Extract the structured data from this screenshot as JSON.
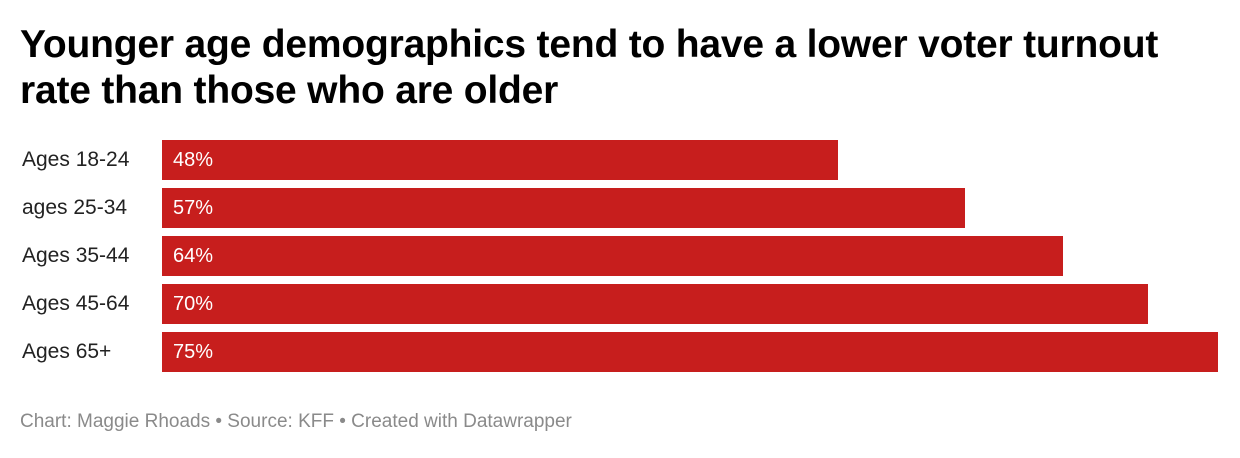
{
  "header": {
    "title": "Younger age demographics tend to have a lower voter turnout rate than those who are older"
  },
  "chart_data": {
    "type": "bar",
    "orientation": "horizontal",
    "title": "Younger age demographics tend to have a lower voter turnout rate than those who are older",
    "categories": [
      "Ages 18-24",
      "ages 25-34",
      "Ages 35-44",
      "Ages 45-64",
      "Ages 65+"
    ],
    "values": [
      48,
      57,
      64,
      70,
      75
    ],
    "value_labels": [
      "48%",
      "57%",
      "64%",
      "70%",
      "75%"
    ],
    "unit": "%",
    "xlim": [
      0,
      75
    ],
    "grid": false,
    "legend": "none",
    "bar_color": "#c71e1d"
  },
  "footer": {
    "credit": "Chart: Maggie Rhoads • Source: KFF • Created with Datawrapper"
  },
  "colors": {
    "bar": "#c71e1d",
    "title": "#000000",
    "label": "#222222",
    "footer": "#8a8a8a",
    "value_text": "#ffffff"
  }
}
